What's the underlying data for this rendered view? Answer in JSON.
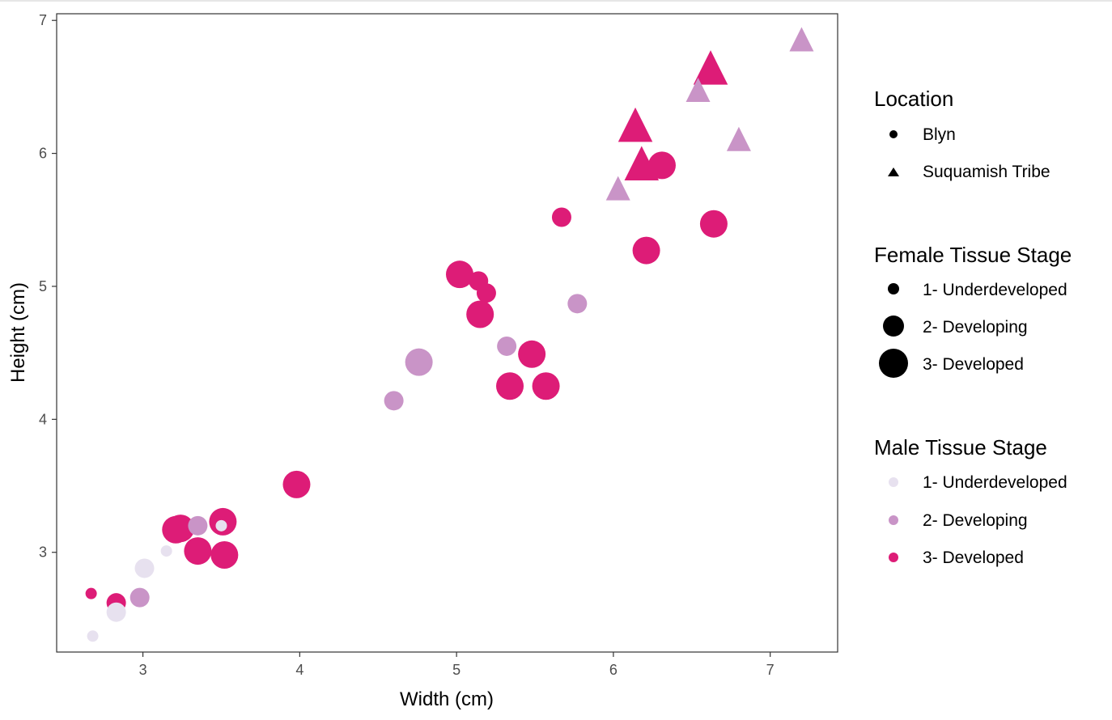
{
  "chart_data": {
    "type": "scatter",
    "xlabel": "Width (cm)",
    "ylabel": "Height (cm)",
    "xlim": [
      2.45,
      7.43
    ],
    "ylim": [
      2.25,
      7.05
    ],
    "xticks": [
      3,
      4,
      5,
      6,
      7
    ],
    "yticks": [
      3,
      4,
      5,
      6,
      7
    ],
    "grid": false,
    "legend_position": "right",
    "colors": {
      "1- Underdeveloped": "#e7e1ef",
      "2- Developing": "#c994c7",
      "3- Developed": "#dd1c77"
    },
    "legends": [
      {
        "title": "Location",
        "items": [
          {
            "label": "Blyn",
            "shape": "circle"
          },
          {
            "label": "Suquamish Tribe",
            "shape": "triangle"
          }
        ]
      },
      {
        "title": "Female Tissue Stage",
        "items": [
          {
            "label": "1- Underdeveloped",
            "size": 1
          },
          {
            "label": "2- Developing",
            "size": 2
          },
          {
            "label": "3- Developed",
            "size": 3
          }
        ]
      },
      {
        "title": "Male Tissue Stage",
        "items": [
          {
            "label": "1- Underdeveloped",
            "male": 1
          },
          {
            "label": "2- Developing",
            "male": 2
          },
          {
            "label": "3- Developed",
            "male": 3
          }
        ]
      }
    ],
    "points": [
      {
        "x": 2.68,
        "y": 2.37,
        "location": "Blyn",
        "female": 1,
        "male": 1
      },
      {
        "x": 2.67,
        "y": 2.69,
        "location": "Blyn",
        "female": 1,
        "male": 3
      },
      {
        "x": 2.83,
        "y": 2.62,
        "location": "Blyn",
        "female": 2,
        "male": 3
      },
      {
        "x": 2.83,
        "y": 2.55,
        "location": "Blyn",
        "female": 2,
        "male": 1
      },
      {
        "x": 2.98,
        "y": 2.66,
        "location": "Blyn",
        "female": 2,
        "male": 2
      },
      {
        "x": 3.01,
        "y": 2.88,
        "location": "Blyn",
        "female": 2,
        "male": 1
      },
      {
        "x": 3.15,
        "y": 3.01,
        "location": "Blyn",
        "female": 1,
        "male": 1
      },
      {
        "x": 3.21,
        "y": 3.17,
        "location": "Blyn",
        "female": 3,
        "male": 3
      },
      {
        "x": 3.24,
        "y": 3.18,
        "location": "Blyn",
        "female": 3,
        "male": 3
      },
      {
        "x": 3.35,
        "y": 3.01,
        "location": "Blyn",
        "female": 3,
        "male": 3
      },
      {
        "x": 3.35,
        "y": 3.2,
        "location": "Blyn",
        "female": 2,
        "male": 2
      },
      {
        "x": 3.51,
        "y": 3.23,
        "location": "Blyn",
        "female": 3,
        "male": 3
      },
      {
        "x": 3.5,
        "y": 3.2,
        "location": "Blyn",
        "female": 1,
        "male": 1
      },
      {
        "x": 3.52,
        "y": 2.98,
        "location": "Blyn",
        "female": 3,
        "male": 3
      },
      {
        "x": 3.98,
        "y": 3.51,
        "location": "Blyn",
        "female": 3,
        "male": 3
      },
      {
        "x": 4.6,
        "y": 4.14,
        "location": "Blyn",
        "female": 2,
        "male": 2
      },
      {
        "x": 4.76,
        "y": 4.43,
        "location": "Blyn",
        "female": 3,
        "male": 2
      },
      {
        "x": 5.02,
        "y": 5.09,
        "location": "Blyn",
        "female": 3,
        "male": 3
      },
      {
        "x": 5.14,
        "y": 5.04,
        "location": "Blyn",
        "female": 2,
        "male": 3
      },
      {
        "x": 5.19,
        "y": 4.95,
        "location": "Blyn",
        "female": 2,
        "male": 3
      },
      {
        "x": 5.15,
        "y": 4.79,
        "location": "Blyn",
        "female": 3,
        "male": 3
      },
      {
        "x": 5.32,
        "y": 4.55,
        "location": "Blyn",
        "female": 2,
        "male": 2
      },
      {
        "x": 5.48,
        "y": 4.49,
        "location": "Blyn",
        "female": 3,
        "male": 3
      },
      {
        "x": 5.34,
        "y": 4.25,
        "location": "Blyn",
        "female": 3,
        "male": 3
      },
      {
        "x": 5.57,
        "y": 4.25,
        "location": "Blyn",
        "female": 3,
        "male": 3
      },
      {
        "x": 5.67,
        "y": 5.52,
        "location": "Blyn",
        "female": 2,
        "male": 3
      },
      {
        "x": 5.77,
        "y": 4.87,
        "location": "Blyn",
        "female": 2,
        "male": 2
      },
      {
        "x": 6.21,
        "y": 5.27,
        "location": "Blyn",
        "female": 3,
        "male": 3
      },
      {
        "x": 6.31,
        "y": 5.91,
        "location": "Blyn",
        "female": 3,
        "male": 3
      },
      {
        "x": 6.64,
        "y": 5.47,
        "location": "Blyn",
        "female": 3,
        "male": 3
      },
      {
        "x": 6.03,
        "y": 5.72,
        "location": "Suquamish Tribe",
        "female": 2,
        "male": 2
      },
      {
        "x": 6.14,
        "y": 6.19,
        "location": "Suquamish Tribe",
        "female": 3,
        "male": 3
      },
      {
        "x": 6.18,
        "y": 5.9,
        "location": "Suquamish Tribe",
        "female": 3,
        "male": 3
      },
      {
        "x": 6.54,
        "y": 6.46,
        "location": "Suquamish Tribe",
        "female": 2,
        "male": 2
      },
      {
        "x": 6.62,
        "y": 6.62,
        "location": "Suquamish Tribe",
        "female": 3,
        "male": 3
      },
      {
        "x": 6.8,
        "y": 6.09,
        "location": "Suquamish Tribe",
        "female": 2,
        "male": 2
      },
      {
        "x": 7.2,
        "y": 6.84,
        "location": "Suquamish Tribe",
        "female": 2,
        "male": 2
      }
    ]
  }
}
